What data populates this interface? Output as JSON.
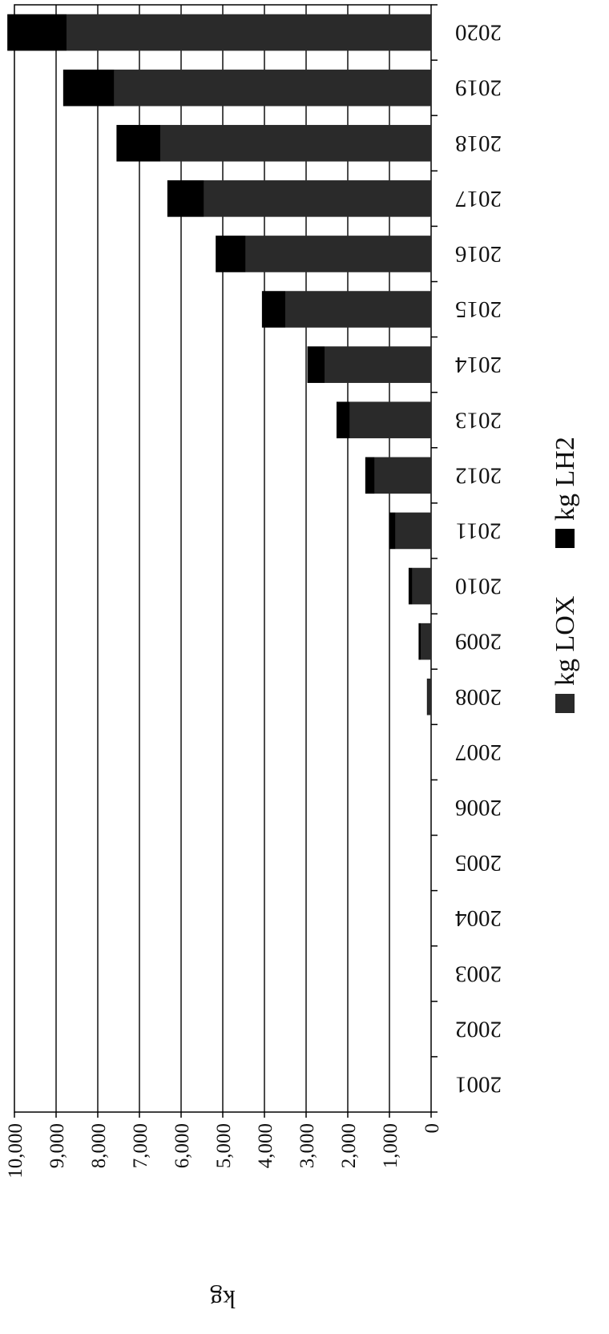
{
  "chart_data": {
    "type": "bar",
    "orientation": "horizontal",
    "categories": [
      "2001",
      "2002",
      "2003",
      "2004",
      "2005",
      "2006",
      "2007",
      "2008",
      "2009",
      "2010",
      "2011",
      "2012",
      "2013",
      "2014",
      "2015",
      "2016",
      "2017",
      "2018",
      "2019",
      "2020"
    ],
    "series": [
      {
        "name": "kg LOX",
        "color": "#2a2a2a",
        "values": [
          0,
          0,
          0,
          0,
          0,
          0,
          0,
          80,
          250,
          450,
          850,
          1350,
          1950,
          2550,
          3500,
          4450,
          5450,
          6500,
          7600,
          8750
        ]
      },
      {
        "name": "kg LH2",
        "color": "#000000",
        "values": [
          0,
          0,
          0,
          0,
          0,
          0,
          0,
          20,
          50,
          90,
          150,
          230,
          320,
          420,
          560,
          720,
          880,
          1050,
          1230,
          1420
        ]
      }
    ],
    "stacked": true,
    "value_axis": {
      "label": "kg",
      "range": [
        0,
        10000
      ],
      "ticks": [
        "0",
        "1,000",
        "2,000",
        "3,000",
        "4,000",
        "5,000",
        "6,000",
        "7,000",
        "8,000",
        "9,000",
        "10,000"
      ]
    },
    "grid": true,
    "legend": {
      "position": "right",
      "items": [
        "kg LOX",
        "kg LH2"
      ]
    }
  }
}
